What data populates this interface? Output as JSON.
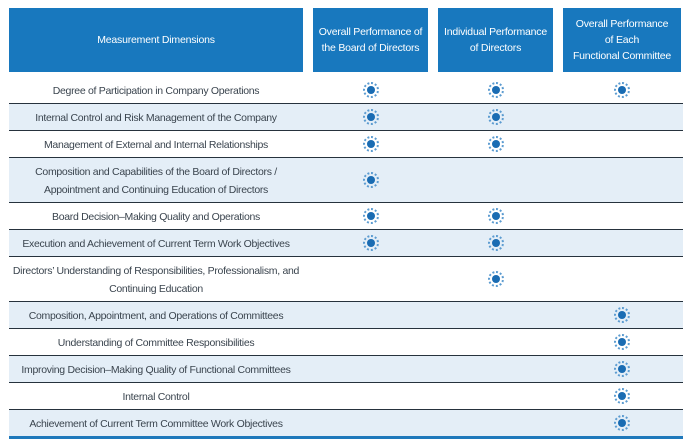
{
  "colors": {
    "header_bg": "#1878be",
    "header_text": "#ffffff",
    "row_alt_bg": "#e4eef7",
    "row_separator": "#26323d",
    "bottom_border": "#1e78bb",
    "mark_core": "#1a6cb3",
    "mark_ring": "#5b9bd0",
    "body_text": "#3a444e"
  },
  "icons": {
    "mark": "dotted-ring-dot-icon"
  },
  "table": {
    "header": {
      "dimensions_label": "Measurement Dimensions",
      "columns": [
        "Overall Performance of the Board of Directors",
        "Individual Performance of Directors",
        "Overall Performance of Each Functional Committee"
      ]
    },
    "rows": [
      {
        "label": "Degree of Participation in Company Operations",
        "marks": [
          true,
          true,
          true
        ]
      },
      {
        "label": "Internal Control and Risk Management of the Company",
        "marks": [
          true,
          true,
          false
        ]
      },
      {
        "label": "Management of External and Internal Relationships",
        "marks": [
          true,
          true,
          false
        ]
      },
      {
        "label": "Composition and Capabilities of the Board of Directors / Appointment and Continuing Education of Directors",
        "marks": [
          true,
          false,
          false
        ]
      },
      {
        "label": "Board Decision–Making Quality and Operations",
        "marks": [
          true,
          true,
          false
        ]
      },
      {
        "label": "Execution and Achievement of Current Term Work Objectives",
        "marks": [
          true,
          true,
          false
        ]
      },
      {
        "label": "Directors’ Understanding of Responsibilities, Professionalism, and Continuing Education",
        "marks": [
          false,
          true,
          false
        ]
      },
      {
        "label": "Composition, Appointment, and Operations of Committees",
        "marks": [
          false,
          false,
          true
        ]
      },
      {
        "label": "Understanding of Committee Responsibilities",
        "marks": [
          false,
          false,
          true
        ]
      },
      {
        "label": "Improving Decision–Making Quality of Functional Committees",
        "marks": [
          false,
          false,
          true
        ]
      },
      {
        "label": "Internal Control",
        "marks": [
          false,
          false,
          true
        ]
      },
      {
        "label": "Achievement of Current Term Committee Work Objectives",
        "marks": [
          false,
          false,
          true
        ]
      }
    ]
  }
}
